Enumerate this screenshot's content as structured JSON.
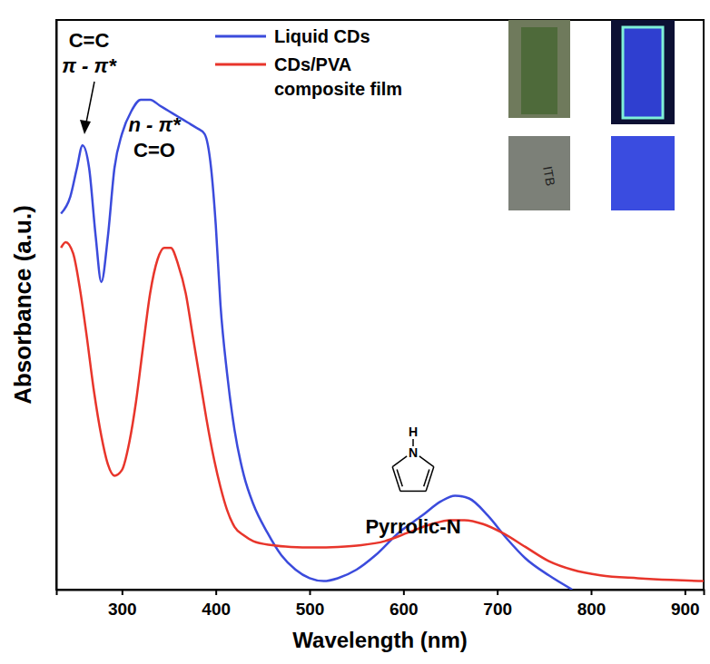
{
  "chart_data": {
    "type": "line",
    "x_label": "Wavelength (nm)",
    "y_label": "Absorbance (a.u.)",
    "xlim": [
      230,
      920
    ],
    "xticks": [
      300,
      400,
      500,
      600,
      700,
      800,
      900
    ],
    "ylim": [
      0,
      1
    ],
    "yticks": [],
    "tick_labels": "x",
    "grid": false,
    "legend": "top",
    "annotations": [
      "C=C",
      "π - π*",
      "n - π*",
      "C=O",
      "Pyrrolic-N",
      "N",
      "H",
      "ITB"
    ],
    "series": [
      {
        "name": "Liquid CDs",
        "color": "#3b4bdc",
        "x": [
          235,
          245,
          252,
          258,
          265,
          272,
          278,
          285,
          292,
          300,
          310,
          320,
          330,
          340,
          350,
          360,
          370,
          380,
          388,
          395,
          400,
          405,
          412,
          420,
          430,
          440,
          455,
          470,
          485,
          500,
          515,
          530,
          550,
          570,
          595,
          620,
          640,
          655,
          670,
          690,
          710,
          730,
          755,
          780
        ],
        "values": [
          0.66,
          0.69,
          0.74,
          0.78,
          0.74,
          0.62,
          0.54,
          0.62,
          0.74,
          0.8,
          0.84,
          0.86,
          0.86,
          0.85,
          0.84,
          0.83,
          0.82,
          0.81,
          0.8,
          0.74,
          0.64,
          0.5,
          0.38,
          0.28,
          0.2,
          0.15,
          0.1,
          0.06,
          0.035,
          0.02,
          0.015,
          0.02,
          0.035,
          0.06,
          0.1,
          0.13,
          0.155,
          0.165,
          0.16,
          0.13,
          0.09,
          0.055,
          0.025,
          0.0
        ]
      },
      {
        "name": "CDs/PVA composite film",
        "color": "#e8352b",
        "x": [
          235,
          240,
          248,
          255,
          262,
          270,
          278,
          285,
          292,
          300,
          308,
          315,
          322,
          330,
          338,
          345,
          352,
          360,
          368,
          375,
          383,
          390,
          398,
          405,
          412,
          420,
          430,
          440,
          460,
          480,
          505,
          530,
          555,
          580,
          605,
          630,
          650,
          665,
          685,
          705,
          730,
          755,
          780,
          810,
          850,
          885,
          920
        ],
        "values": [
          0.6,
          0.61,
          0.59,
          0.53,
          0.45,
          0.35,
          0.27,
          0.22,
          0.2,
          0.21,
          0.26,
          0.33,
          0.42,
          0.52,
          0.58,
          0.6,
          0.6,
          0.57,
          0.52,
          0.45,
          0.37,
          0.3,
          0.23,
          0.18,
          0.14,
          0.11,
          0.095,
          0.085,
          0.078,
          0.075,
          0.074,
          0.075,
          0.078,
          0.085,
          0.1,
          0.115,
          0.122,
          0.122,
          0.115,
          0.1,
          0.075,
          0.05,
          0.035,
          0.025,
          0.02,
          0.017,
          0.015
        ]
      }
    ]
  }
}
